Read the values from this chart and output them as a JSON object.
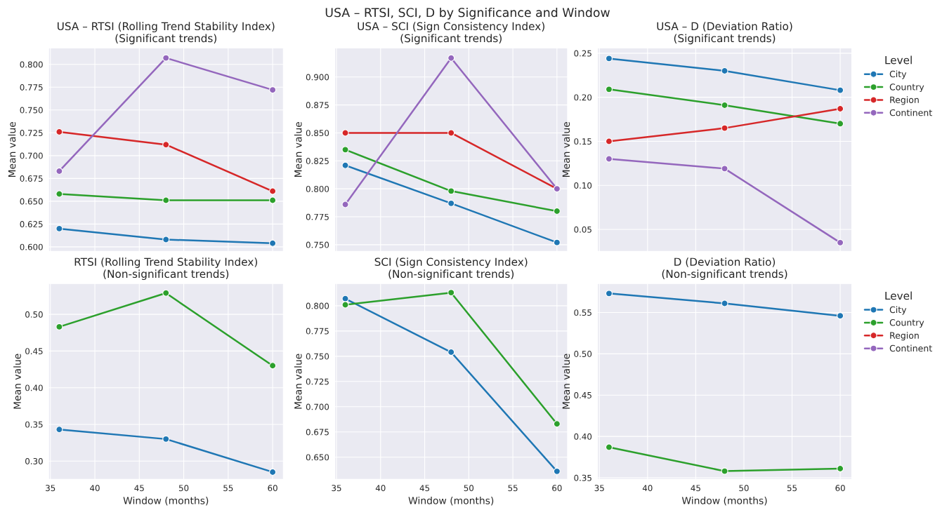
{
  "chart_data": [
    {
      "type": "other",
      "title": "USA – RTSI, SCI, D by Significance and Window"
    },
    {
      "type": "line",
      "title": "USA – RTSI (Rolling Trend Stability Index)\n(Significant trends)",
      "ylabel": "Mean value",
      "x": [
        36,
        48,
        60
      ],
      "xlim": [
        34.8,
        61.2
      ],
      "ylim": [
        0.595,
        0.818
      ],
      "yticks": [
        {
          "value": 0.6,
          "label": "0.600"
        },
        {
          "value": 0.625,
          "label": "0.625"
        },
        {
          "value": 0.65,
          "label": "0.650"
        },
        {
          "value": 0.675,
          "label": "0.675"
        },
        {
          "value": 0.7,
          "label": "0.700"
        },
        {
          "value": 0.725,
          "label": "0.725"
        },
        {
          "value": 0.75,
          "label": "0.750"
        },
        {
          "value": 0.775,
          "label": "0.775"
        },
        {
          "value": 0.8,
          "label": "0.800"
        }
      ],
      "tick_labels": "y",
      "marker": "circle",
      "grid": true,
      "legend": false,
      "series": [
        {
          "color": "#1f77b4",
          "values": [
            0.62,
            0.608,
            0.604
          ]
        },
        {
          "color": "#2ca02c",
          "values": [
            0.658,
            0.651,
            0.651
          ]
        },
        {
          "color": "#d62728",
          "values": [
            0.726,
            0.712,
            0.661
          ]
        },
        {
          "color": "#9467bd",
          "values": [
            0.683,
            0.807,
            0.772
          ]
        }
      ]
    },
    {
      "type": "line",
      "title": "USA – SCI (Sign Consistency Index)\n(Significant trends)",
      "ylabel": "Mean value",
      "x": [
        36,
        48,
        60
      ],
      "xlim": [
        34.8,
        61.2
      ],
      "ylim": [
        0.744,
        0.926
      ],
      "yticks": [
        {
          "value": 0.75,
          "label": "0.750"
        },
        {
          "value": 0.775,
          "label": "0.775"
        },
        {
          "value": 0.8,
          "label": "0.800"
        },
        {
          "value": 0.825,
          "label": "0.825"
        },
        {
          "value": 0.85,
          "label": "0.850"
        },
        {
          "value": 0.875,
          "label": "0.875"
        },
        {
          "value": 0.9,
          "label": "0.900"
        }
      ],
      "tick_labels": "y",
      "marker": "circle",
      "grid": true,
      "legend": false,
      "series": [
        {
          "color": "#1f77b4",
          "values": [
            0.821,
            0.787,
            0.752
          ]
        },
        {
          "color": "#2ca02c",
          "values": [
            0.835,
            0.798,
            0.78
          ]
        },
        {
          "color": "#d62728",
          "values": [
            0.85,
            0.85,
            0.8
          ]
        },
        {
          "color": "#9467bd",
          "values": [
            0.786,
            0.917,
            0.8
          ]
        }
      ]
    },
    {
      "type": "line",
      "title": "USA – D (Deviation Ratio)\n(Significant trends)",
      "ylabel": "Mean value",
      "x": [
        36,
        48,
        60
      ],
      "xlim": [
        34.8,
        61.2
      ],
      "ylim": [
        0.025,
        0.256
      ],
      "yticks": [
        {
          "value": 0.05,
          "label": "0.05"
        },
        {
          "value": 0.1,
          "label": "0.10"
        },
        {
          "value": 0.15,
          "label": "0.15"
        },
        {
          "value": 0.2,
          "label": "0.20"
        },
        {
          "value": 0.25,
          "label": "0.25"
        }
      ],
      "tick_labels": "y",
      "marker": "circle",
      "grid": true,
      "legend": "right",
      "legend_title": "Level",
      "series": [
        {
          "name": "City",
          "color": "#1f77b4",
          "values": [
            0.244,
            0.23,
            0.208
          ]
        },
        {
          "name": "Country",
          "color": "#2ca02c",
          "values": [
            0.209,
            0.191,
            0.17
          ]
        },
        {
          "name": "Region",
          "color": "#d62728",
          "values": [
            0.15,
            0.165,
            0.187
          ]
        },
        {
          "name": "Continent",
          "color": "#9467bd",
          "values": [
            0.13,
            0.119,
            0.035
          ]
        }
      ]
    },
    {
      "type": "line",
      "title": "RTSI (Rolling Trend Stability Index)\n(Non-significant trends)",
      "xlabel": "Window (months)",
      "ylabel": "Mean value",
      "x": [
        36,
        48,
        60
      ],
      "xlim": [
        34.8,
        61.2
      ],
      "xticks": [
        35,
        40,
        45,
        50,
        55,
        60
      ],
      "ylim": [
        0.275,
        0.542
      ],
      "yticks": [
        {
          "value": 0.3,
          "label": "0.30"
        },
        {
          "value": 0.35,
          "label": "0.35"
        },
        {
          "value": 0.4,
          "label": "0.40"
        },
        {
          "value": 0.45,
          "label": "0.45"
        },
        {
          "value": 0.5,
          "label": "0.50"
        }
      ],
      "marker": "circle",
      "grid": true,
      "legend": false,
      "series": [
        {
          "color": "#1f77b4",
          "values": [
            0.343,
            0.33,
            0.285
          ]
        },
        {
          "color": "#2ca02c",
          "values": [
            0.483,
            0.529,
            0.43
          ]
        }
      ]
    },
    {
      "type": "line",
      "title": "SCI (Sign Consistency Index)\n(Non-significant trends)",
      "xlabel": "Window (months)",
      "ylabel": "Mean value",
      "x": [
        36,
        48,
        60
      ],
      "xlim": [
        34.8,
        61.2
      ],
      "xticks": [
        35,
        40,
        45,
        50,
        55,
        60
      ],
      "ylim": [
        0.628,
        0.822
      ],
      "yticks": [
        {
          "value": 0.65,
          "label": "0.650"
        },
        {
          "value": 0.675,
          "label": "0.675"
        },
        {
          "value": 0.7,
          "label": "0.700"
        },
        {
          "value": 0.725,
          "label": "0.725"
        },
        {
          "value": 0.75,
          "label": "0.750"
        },
        {
          "value": 0.775,
          "label": "0.775"
        },
        {
          "value": 0.8,
          "label": "0.800"
        }
      ],
      "marker": "circle",
      "grid": true,
      "legend": false,
      "series": [
        {
          "color": "#1f77b4",
          "values": [
            0.807,
            0.754,
            0.636
          ]
        },
        {
          "color": "#2ca02c",
          "values": [
            0.801,
            0.813,
            0.683
          ]
        }
      ]
    },
    {
      "type": "line",
      "title": "D (Deviation Ratio)\n(Non-significant trends)",
      "xlabel": "Window (months)",
      "ylabel": "Mean value",
      "x": [
        36,
        48,
        60
      ],
      "xlim": [
        34.8,
        61.2
      ],
      "xticks": [
        35,
        40,
        45,
        50,
        55,
        60
      ],
      "ylim": [
        0.348,
        0.585
      ],
      "yticks": [
        {
          "value": 0.35,
          "label": "0.35"
        },
        {
          "value": 0.4,
          "label": "0.40"
        },
        {
          "value": 0.45,
          "label": "0.45"
        },
        {
          "value": 0.5,
          "label": "0.50"
        },
        {
          "value": 0.55,
          "label": "0.55"
        }
      ],
      "marker": "circle",
      "grid": true,
      "legend": "right",
      "legend_title": "Level",
      "series": [
        {
          "name": "City",
          "color": "#1f77b4",
          "values": [
            0.573,
            0.561,
            0.546
          ]
        },
        {
          "name": "Country",
          "color": "#2ca02c",
          "values": [
            0.387,
            0.358,
            0.361
          ]
        },
        {
          "name": "Region",
          "color": "#d62728",
          "values": [
            null,
            null,
            null
          ]
        },
        {
          "name": "Continent",
          "color": "#9467bd",
          "values": [
            null,
            null,
            null
          ]
        }
      ]
    }
  ]
}
